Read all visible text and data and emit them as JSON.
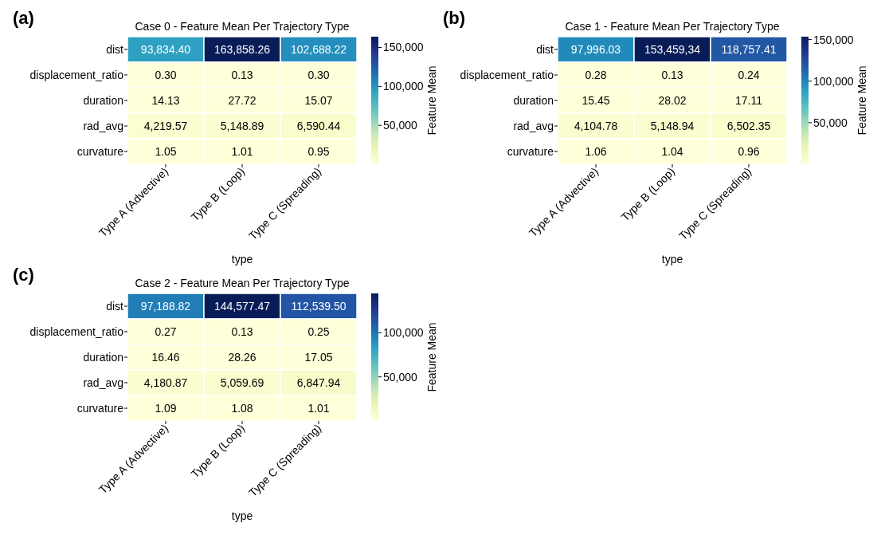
{
  "chart_data": [
    {
      "type": "heatmap",
      "title": "Case 0 - Feature Mean Per Trajectory Type",
      "xlabel": "type",
      "clabel": "Feature Mean",
      "annotations": [
        "(a)"
      ],
      "categories": [
        "Type A (Advective)",
        "Type B (Loop)",
        "Type C (Spreading)"
      ],
      "y_categories": [
        "dist",
        "displacement_ratio",
        "duration",
        "rad_avg",
        "curvature"
      ],
      "cells": [
        [
          93834.4,
          163858.26,
          102688.22
        ],
        [
          0.3,
          0.13,
          0.3
        ],
        [
          14.13,
          27.72,
          15.07
        ],
        [
          4219.57,
          5148.89,
          6590.44
        ],
        [
          1.05,
          1.01,
          0.95
        ]
      ],
      "cell_labels": [
        [
          "93,834.40",
          "163,858.26",
          "102,688.22"
        ],
        [
          "0.30",
          "0.13",
          "0.30"
        ],
        [
          "14.13",
          "27.72",
          "15.07"
        ],
        [
          "4,219.57",
          "5,148.89",
          "6,590.44"
        ],
        [
          "1.05",
          "1.01",
          "0.95"
        ]
      ],
      "clim": [
        0.13,
        163858.26
      ],
      "cticks": [
        {
          "value": 50000,
          "label": "50,000"
        },
        {
          "value": 100000,
          "label": "100,000"
        },
        {
          "value": 150000,
          "label": "150,000"
        }
      ]
    },
    {
      "type": "heatmap",
      "title": "Case 1 - Feature Mean Per Trajectory Type",
      "xlabel": "type",
      "clabel": "Feature Mean",
      "annotations": [
        "(b)"
      ],
      "categories": [
        "Type A (Advective)",
        "Type B (Loop)",
        "Type C (Spreading)"
      ],
      "y_categories": [
        "dist",
        "displacement_ratio",
        "duration",
        "rad_avg",
        "curvature"
      ],
      "cells": [
        [
          97996.03,
          153459.34,
          118757.41
        ],
        [
          0.28,
          0.13,
          0.24
        ],
        [
          15.45,
          28.02,
          17.11
        ],
        [
          4104.78,
          5148.94,
          6502.35
        ],
        [
          1.06,
          1.04,
          0.96
        ]
      ],
      "cell_labels": [
        [
          "97,996.03",
          "153,459,34",
          "118,757.41"
        ],
        [
          "0.28",
          "0.13",
          "0.24"
        ],
        [
          "15.45",
          "28.02",
          "17.11"
        ],
        [
          "4,104.78",
          "5,148.94",
          "6,502.35"
        ],
        [
          "1.06",
          "1.04",
          "0.96"
        ]
      ],
      "clim": [
        0.13,
        153459.34
      ],
      "cticks": [
        {
          "value": 50000,
          "label": "50,000"
        },
        {
          "value": 100000,
          "label": "100,000"
        },
        {
          "value": 150000,
          "label": "150,000"
        }
      ]
    },
    {
      "type": "heatmap",
      "title": "Case 2 - Feature Mean Per Trajectory Type",
      "xlabel": "type",
      "clabel": "Feature Mean",
      "annotations": [
        "(c)"
      ],
      "categories": [
        "Type A (Advective)",
        "Type B (Loop)",
        "Type C (Spreading)"
      ],
      "y_categories": [
        "dist",
        "displacement_ratio",
        "duration",
        "rad_avg",
        "curvature"
      ],
      "cells": [
        [
          97188.82,
          144577.47,
          112539.5
        ],
        [
          0.27,
          0.13,
          0.25
        ],
        [
          16.46,
          28.26,
          17.05
        ],
        [
          4180.87,
          5059.69,
          6847.94
        ],
        [
          1.09,
          1.08,
          1.01
        ]
      ],
      "cell_labels": [
        [
          "97,188.82",
          "144,577.47",
          "112,539.50"
        ],
        [
          "0.27",
          "0.13",
          "0.25"
        ],
        [
          "16.46",
          "28.26",
          "17.05"
        ],
        [
          "4,180.87",
          "5,059.69",
          "6,847.94"
        ],
        [
          "1.09",
          "1.08",
          "1.01"
        ]
      ],
      "clim": [
        0.13,
        144577.47
      ],
      "cticks": [
        {
          "value": 50000,
          "label": "50,000"
        },
        {
          "value": 100000,
          "label": "100,000"
        }
      ]
    }
  ]
}
